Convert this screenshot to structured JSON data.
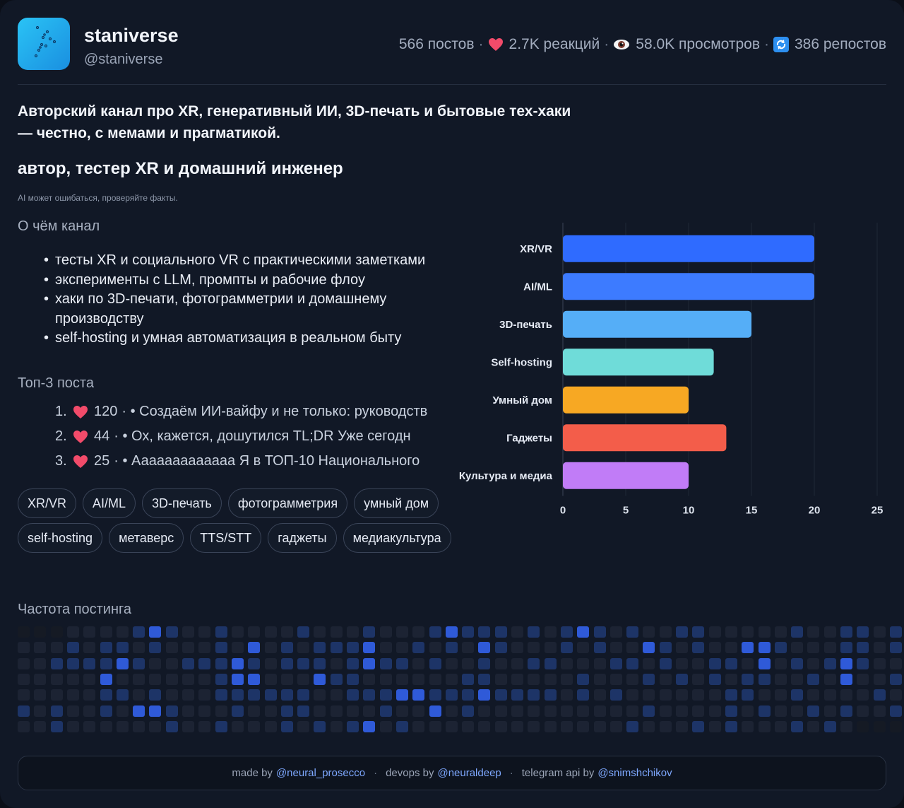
{
  "channel": {
    "name": "staniverse",
    "handle": "@staniverse"
  },
  "stats": {
    "posts": "566 постов",
    "reactions": "2.7K реакций",
    "views": "58.0K просмотров",
    "reposts": "386 репостов",
    "separator": "·"
  },
  "description": "Авторский канал про XR, генеративный ИИ, 3D-печать и бытовые тех-хаки — честно, с мемами и прагматикой.",
  "role": "автор, тестер XR и домашний инженер",
  "disclaimer": "AI может ошибаться, проверяйте факты.",
  "about": {
    "title": "О чём канал",
    "items": [
      "тесты XR и социального VR с практическими заметками",
      "эксперименты с LLM, промпты и рабочие флоу",
      "хаки по 3D-печати, фотограмметрии и домашнему производству",
      "self-hosting и умная автоматизация в реальном быту"
    ]
  },
  "top_posts": {
    "title": "Топ-3 поста",
    "items": [
      {
        "num": "1.",
        "reactions": "120",
        "text": "· • Создаём ИИ-вайфу и не только: руководств"
      },
      {
        "num": "2.",
        "reactions": "44",
        "text": "· • Ох, кажется, дошутился TL;DR Уже сегодн"
      },
      {
        "num": "3.",
        "reactions": "25",
        "text": "· • Ааааааааааааа Я в ТОП-10 Национального"
      }
    ]
  },
  "tags": [
    "XR/VR",
    "AI/ML",
    "3D-печать",
    "фотограмметрия",
    "умный дом",
    "self-hosting",
    "метаверс",
    "TTS/STT",
    "гаджеты",
    "медиакультура"
  ],
  "chart_data": {
    "type": "bar",
    "orientation": "horizontal",
    "categories": [
      "XR/VR",
      "AI/ML",
      "3D-печать",
      "Self-hosting",
      "Умный дом",
      "Гаджеты",
      "Культура и медиа"
    ],
    "values": [
      20,
      20,
      15,
      12,
      10,
      13,
      10
    ],
    "colors": [
      "#2f6bff",
      "#3d7bff",
      "#55aef7",
      "#6fdcd9",
      "#f7a823",
      "#f35d4a",
      "#c17cf7"
    ],
    "xlim": [
      0,
      25
    ],
    "xticks": [
      0,
      5,
      10,
      15,
      20,
      25
    ],
    "title": "",
    "xlabel": "",
    "ylabel": ""
  },
  "heatmap": {
    "title": "Частота постинга",
    "levels": [
      "0001111232112111121112111232221212321211221111121122121",
      "1112122121112131212223112121321112121132121133211122122",
      "1122223211222321222123221211211221112212112213121232113",
      "1111131111112331113221111112211111211121212122112131123",
      "1111122121112222221122233222322221212111111221121111213",
      "2121121332111211221111211312111111111121111212112121121",
      "1121111112112111212123121111111111111211121211121210000"
    ],
    "colors": [
      "#151a24",
      "#1c2333",
      "#1d3467",
      "#2f5ad8",
      "#4a8cff"
    ]
  },
  "footer": {
    "made_by_label": "made by",
    "made_by_link": "@neural_prosecco",
    "devops_label": "devops by",
    "devops_link": "@neuraldeep",
    "api_label": "telegram api by",
    "api_link": "@snimshchikov",
    "separator": "·"
  }
}
